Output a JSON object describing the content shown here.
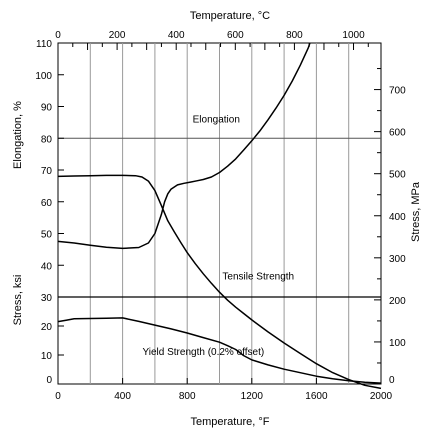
{
  "chart_data": {
    "type": "line",
    "title": "",
    "axes": {
      "x_bottom": {
        "label": "Temperature, °F",
        "range": [
          0,
          2000
        ],
        "ticks": [
          "0",
          "400",
          "800",
          "1200",
          "1600",
          "2000"
        ]
      },
      "x_top": {
        "label": "Temperature, °C",
        "range": [
          0,
          1093
        ],
        "ticks": [
          "0",
          "200",
          "400",
          "600",
          "800",
          "1000"
        ]
      },
      "y_left_upper": {
        "label": "Elongation, %",
        "range": [
          30,
          110
        ],
        "ticks": [
          "30",
          "40",
          "50",
          "60",
          "70",
          "80",
          "90",
          "100",
          "110"
        ]
      },
      "y_left_lower": {
        "label": "Stress,  ksi",
        "range": [
          0,
          30
        ],
        "ticks": [
          "0",
          "10",
          "20",
          "30"
        ]
      },
      "y_right": {
        "label": "Stress, MPa",
        "range": [
          0,
          760
        ],
        "ticks": [
          "0",
          "100",
          "200",
          "300",
          "400",
          "500",
          "600",
          "700"
        ]
      }
    },
    "grid": "vertical lines at 200 °F steps, horizontal lines at 80% elongation and 30 ksi",
    "series": [
      {
        "name": "Elongation",
        "panel": "upper",
        "x": [
          0,
          100,
          200,
          300,
          400,
          500,
          560,
          600,
          640,
          660,
          680,
          700,
          740,
          780,
          820,
          860,
          900,
          950,
          1000,
          1050,
          1100,
          1150,
          1200,
          1250,
          1300,
          1350,
          1400,
          1450,
          1500,
          1550,
          1560
        ],
        "y": [
          47.5,
          47.0,
          46.3,
          45.7,
          45.3,
          45.6,
          47.0,
          50.0,
          56.0,
          60.0,
          62.5,
          64.0,
          65.3,
          65.8,
          66.2,
          66.6,
          67.0,
          67.8,
          69.2,
          71.2,
          73.5,
          76.3,
          79.2,
          82.3,
          85.8,
          89.5,
          93.5,
          98.0,
          103.0,
          108.5,
          110.0
        ]
      },
      {
        "name": "Tensile Strength",
        "panel": "lower",
        "x": [
          0,
          100,
          200,
          300,
          400,
          480,
          520,
          560,
          600,
          640,
          680,
          720,
          760,
          800,
          850,
          900,
          950,
          1000,
          1050,
          1100,
          1150,
          1200,
          1300,
          1400,
          1500,
          1600,
          1700,
          1800,
          1900,
          2000
        ],
        "y": [
          68.0,
          68.1,
          68.2,
          68.3,
          68.3,
          68.2,
          67.8,
          66.5,
          63.5,
          58.8,
          54.0,
          50.5,
          47.2,
          44.0,
          40.5,
          37.3,
          34.3,
          31.5,
          29.0,
          26.8,
          24.8,
          22.8,
          19.0,
          15.5,
          12.2,
          9.0,
          6.2,
          4.0,
          2.2,
          1.2
        ]
      },
      {
        "name": "Yield Strength (0.2% offset)",
        "panel": "lower",
        "x": [
          0,
          50,
          100,
          200,
          300,
          400,
          500,
          600,
          700,
          800,
          900,
          1000,
          1050,
          1100,
          1150,
          1200,
          1300,
          1400,
          1500,
          1600,
          1700,
          1800,
          1900,
          2000
        ],
        "y": [
          21.5,
          22.0,
          22.5,
          22.6,
          22.7,
          22.8,
          21.6,
          20.3,
          19.0,
          17.6,
          16.0,
          14.4,
          13.2,
          11.9,
          9.8,
          8.3,
          6.6,
          5.1,
          3.9,
          2.7,
          1.8,
          1.1,
          0.6,
          0.3
        ]
      }
    ],
    "annotations": [
      {
        "text": "Elongation",
        "x": 980,
        "y": 85
      },
      {
        "text": "Tensile Strength",
        "x": 1240,
        "y": 35.5
      },
      {
        "text": "Yield Strength (0.2% offset)",
        "x": 900,
        "y": 10
      }
    ]
  }
}
